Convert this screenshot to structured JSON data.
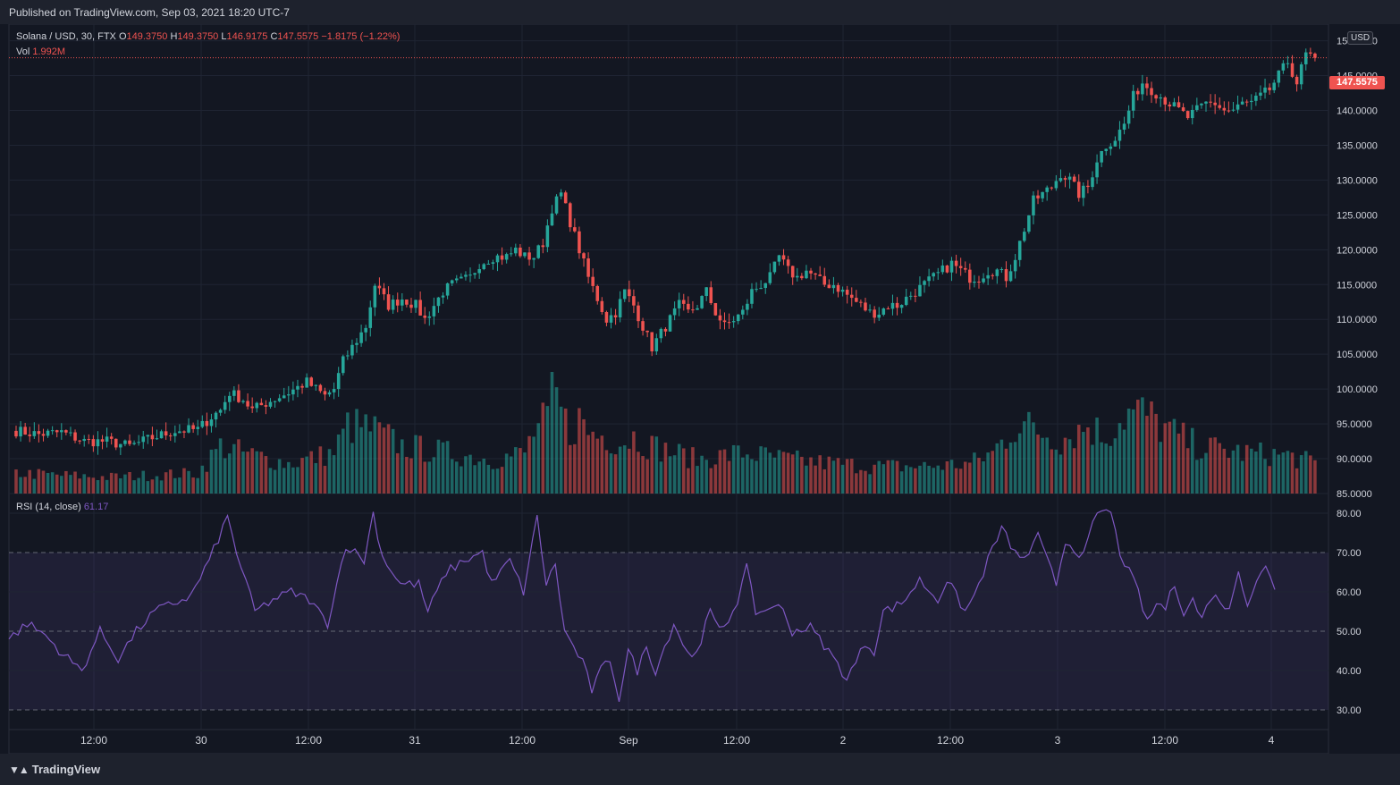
{
  "header": {
    "published": "Published on TradingView.com, Sep 03, 2021 18:20 UTC-7"
  },
  "footer": {
    "brand": "TradingView",
    "logo_icon": "tradingview-logo-icon"
  },
  "legend": {
    "symbol": "Solana / USD, 30, FTX",
    "o_label": "O",
    "o_value": "149.3750",
    "h_label": "H",
    "h_value": "149.3750",
    "l_label": "L",
    "l_value": "146.9175",
    "c_label": "C",
    "c_value": "147.5575",
    "change": "−1.8175 (−1.22%)",
    "vol_label": "Vol",
    "vol_value": "1.992M",
    "rsi_label": "RSI (14, close)",
    "rsi_value": "61.17"
  },
  "currency": "USD",
  "last_price": "147.5575",
  "colors": {
    "up": "#26a69a",
    "down": "#ef5350",
    "rsi": "#7e57c2",
    "background": "#131722",
    "grid": "#1f2433"
  },
  "chart_data": [
    {
      "type": "candlestick",
      "title": "Solana / USD, 30, FTX",
      "ylim": [
        85,
        152
      ],
      "y_ticks": [
        "150.0000",
        "145.0000",
        "140.0000",
        "135.0000",
        "130.0000",
        "125.0000",
        "120.0000",
        "115.0000",
        "110.0000",
        "105.0000",
        "100.0000",
        "95.0000",
        "90.0000",
        "85.0000"
      ],
      "x_ticks": [
        "12:00",
        "30",
        "12:00",
        "31",
        "12:00",
        "Sep",
        "12:00",
        "2",
        "12:00",
        "3",
        "12:00",
        "4"
      ],
      "close_anchors": [
        [
          0,
          94
        ],
        [
          5,
          93.5
        ],
        [
          10,
          93.8
        ],
        [
          15,
          92.5
        ],
        [
          20,
          92.5
        ],
        [
          25,
          91.8
        ],
        [
          30,
          93
        ],
        [
          35,
          94
        ],
        [
          40,
          94.2
        ],
        [
          43,
          96
        ],
        [
          45,
          97
        ],
        [
          47,
          99.5
        ],
        [
          50,
          98.5
        ],
        [
          52,
          97
        ],
        [
          55,
          98
        ],
        [
          60,
          99.5
        ],
        [
          64,
          101
        ],
        [
          66,
          100
        ],
        [
          68,
          99
        ],
        [
          70,
          100
        ],
        [
          72,
          104
        ],
        [
          75,
          107
        ],
        [
          77,
          109
        ],
        [
          79,
          115
        ],
        [
          82,
          112
        ],
        [
          85,
          113
        ],
        [
          88,
          112
        ],
        [
          90,
          110
        ],
        [
          92,
          112
        ],
        [
          94,
          114
        ],
        [
          96,
          115
        ],
        [
          100,
          116
        ],
        [
          102,
          118
        ],
        [
          105,
          119
        ],
        [
          108,
          119
        ],
        [
          110,
          120
        ],
        [
          112,
          119
        ],
        [
          114,
          119
        ],
        [
          116,
          121
        ],
        [
          118,
          126
        ],
        [
          120,
          128
        ],
        [
          122,
          124
        ],
        [
          124,
          120
        ],
        [
          126,
          116
        ],
        [
          128,
          113
        ],
        [
          130,
          110
        ],
        [
          132,
          111
        ],
        [
          134,
          114
        ],
        [
          136,
          112
        ],
        [
          138,
          109
        ],
        [
          140,
          106
        ],
        [
          142,
          108
        ],
        [
          144,
          110
        ],
        [
          146,
          112
        ],
        [
          148,
          111
        ],
        [
          150,
          112
        ],
        [
          152,
          114
        ],
        [
          154,
          111
        ],
        [
          156,
          109
        ],
        [
          158,
          110
        ],
        [
          160,
          111
        ],
        [
          162,
          114
        ],
        [
          164,
          115
        ],
        [
          166,
          116
        ],
        [
          168,
          119
        ],
        [
          170,
          117
        ],
        [
          172,
          116
        ],
        [
          174,
          117
        ],
        [
          176,
          116
        ],
        [
          178,
          115
        ],
        [
          180,
          115
        ],
        [
          182,
          114
        ],
        [
          184,
          113
        ],
        [
          186,
          112
        ],
        [
          188,
          111
        ],
        [
          190,
          111
        ],
        [
          192,
          112
        ],
        [
          194,
          112
        ],
        [
          196,
          113
        ],
        [
          198,
          114
        ],
        [
          200,
          115
        ],
        [
          202,
          116
        ],
        [
          204,
          117
        ],
        [
          206,
          118
        ],
        [
          208,
          117
        ],
        [
          210,
          116
        ],
        [
          212,
          116
        ],
        [
          214,
          117
        ],
        [
          216,
          117
        ],
        [
          218,
          116
        ],
        [
          220,
          119
        ],
        [
          222,
          123
        ],
        [
          224,
          127
        ],
        [
          226,
          128
        ],
        [
          228,
          129
        ],
        [
          230,
          131
        ],
        [
          232,
          130
        ],
        [
          234,
          128
        ],
        [
          236,
          129
        ],
        [
          238,
          133
        ],
        [
          240,
          135
        ],
        [
          242,
          136
        ],
        [
          244,
          138
        ],
        [
          246,
          142
        ],
        [
          248,
          144
        ],
        [
          250,
          143
        ],
        [
          252,
          142
        ],
        [
          254,
          141
        ],
        [
          256,
          140
        ],
        [
          258,
          139
        ],
        [
          260,
          140
        ],
        [
          262,
          141
        ],
        [
          264,
          141
        ],
        [
          266,
          140
        ],
        [
          268,
          140
        ],
        [
          270,
          141
        ],
        [
          272,
          141
        ],
        [
          274,
          142
        ],
        [
          276,
          143
        ],
        [
          278,
          145
        ],
        [
          280,
          147
        ],
        [
          282,
          144
        ],
        [
          284,
          148
        ],
        [
          286,
          147.5575
        ]
      ],
      "vol_anchors": [
        [
          0,
          0.15
        ],
        [
          20,
          0.12
        ],
        [
          40,
          0.15
        ],
        [
          45,
          0.35
        ],
        [
          50,
          0.3
        ],
        [
          60,
          0.22
        ],
        [
          70,
          0.3
        ],
        [
          73,
          0.5
        ],
        [
          78,
          0.48
        ],
        [
          85,
          0.35
        ],
        [
          95,
          0.3
        ],
        [
          105,
          0.25
        ],
        [
          112,
          0.3
        ],
        [
          114,
          0.45
        ],
        [
          117,
          0.55
        ],
        [
          118,
          0.78
        ],
        [
          120,
          0.6
        ],
        [
          122,
          0.45
        ],
        [
          124,
          0.55
        ],
        [
          126,
          0.45
        ],
        [
          130,
          0.42
        ],
        [
          133,
          0.38
        ],
        [
          136,
          0.42
        ],
        [
          140,
          0.35
        ],
        [
          150,
          0.25
        ],
        [
          160,
          0.3
        ],
        [
          170,
          0.25
        ],
        [
          180,
          0.22
        ],
        [
          190,
          0.2
        ],
        [
          200,
          0.2
        ],
        [
          210,
          0.22
        ],
        [
          215,
          0.3
        ],
        [
          220,
          0.5
        ],
        [
          224,
          0.48
        ],
        [
          230,
          0.4
        ],
        [
          236,
          0.5
        ],
        [
          240,
          0.42
        ],
        [
          244,
          0.58
        ],
        [
          248,
          0.6
        ],
        [
          252,
          0.5
        ],
        [
          256,
          0.42
        ],
        [
          260,
          0.35
        ],
        [
          270,
          0.3
        ],
        [
          280,
          0.28
        ],
        [
          286,
          0.22
        ]
      ],
      "last_price": 147.5575,
      "last_volume": "1.992M"
    },
    {
      "type": "line",
      "name": "RSI (14, close)",
      "ylim": [
        25,
        85
      ],
      "y_ticks": [
        "80.00",
        "70.00",
        "60.00",
        "50.00",
        "40.00",
        "30.00"
      ],
      "bands": {
        "upper": 70,
        "middle": 50,
        "lower": 30
      },
      "anchors": [
        [
          0,
          48
        ],
        [
          4,
          52
        ],
        [
          8,
          49
        ],
        [
          12,
          44
        ],
        [
          16,
          40
        ],
        [
          20,
          50
        ],
        [
          24,
          43
        ],
        [
          28,
          50
        ],
        [
          32,
          55
        ],
        [
          36,
          57
        ],
        [
          40,
          59
        ],
        [
          44,
          68
        ],
        [
          48,
          79
        ],
        [
          50,
          70
        ],
        [
          54,
          55
        ],
        [
          58,
          58
        ],
        [
          62,
          60
        ],
        [
          66,
          58
        ],
        [
          70,
          52
        ],
        [
          72,
          62
        ],
        [
          74,
          72
        ],
        [
          78,
          68
        ],
        [
          80,
          80
        ],
        [
          82,
          69
        ],
        [
          86,
          62
        ],
        [
          90,
          62
        ],
        [
          92,
          55
        ],
        [
          96,
          65
        ],
        [
          100,
          68
        ],
        [
          104,
          70
        ],
        [
          106,
          62
        ],
        [
          110,
          68
        ],
        [
          113,
          60
        ],
        [
          116,
          79
        ],
        [
          118,
          62
        ],
        [
          120,
          67
        ],
        [
          122,
          50
        ],
        [
          126,
          42
        ],
        [
          128,
          35
        ],
        [
          130,
          40
        ],
        [
          132,
          43
        ],
        [
          134,
          33
        ],
        [
          136,
          45
        ],
        [
          138,
          40
        ],
        [
          140,
          46
        ],
        [
          142,
          40
        ],
        [
          144,
          46
        ],
        [
          146,
          52
        ],
        [
          148,
          47
        ],
        [
          150,
          43
        ],
        [
          152,
          48
        ],
        [
          154,
          55
        ],
        [
          156,
          50
        ],
        [
          158,
          53
        ],
        [
          160,
          58
        ],
        [
          162,
          66
        ],
        [
          164,
          55
        ],
        [
          166,
          55
        ],
        [
          168,
          57
        ],
        [
          170,
          55
        ],
        [
          172,
          50
        ],
        [
          176,
          51
        ],
        [
          180,
          45
        ],
        [
          184,
          38
        ],
        [
          186,
          42
        ],
        [
          188,
          47
        ],
        [
          190,
          45
        ],
        [
          192,
          55
        ],
        [
          196,
          57
        ],
        [
          200,
          63
        ],
        [
          204,
          58
        ],
        [
          206,
          63
        ],
        [
          210,
          55
        ],
        [
          212,
          59
        ],
        [
          216,
          71
        ],
        [
          218,
          76
        ],
        [
          220,
          72
        ],
        [
          222,
          68
        ],
        [
          224,
          70
        ],
        [
          226,
          74
        ],
        [
          228,
          68
        ],
        [
          230,
          62
        ],
        [
          232,
          73
        ],
        [
          234,
          71
        ],
        [
          236,
          69
        ],
        [
          238,
          77
        ],
        [
          240,
          81
        ],
        [
          242,
          80
        ],
        [
          244,
          70
        ],
        [
          246,
          65
        ],
        [
          248,
          60
        ],
        [
          250,
          52
        ],
        [
          252,
          57
        ],
        [
          254,
          56
        ],
        [
          256,
          62
        ],
        [
          258,
          55
        ],
        [
          260,
          58
        ],
        [
          262,
          53
        ],
        [
          264,
          59
        ],
        [
          266,
          58
        ],
        [
          268,
          55
        ],
        [
          270,
          66
        ],
        [
          272,
          57
        ],
        [
          274,
          63
        ],
        [
          276,
          66
        ],
        [
          278,
          61.17
        ]
      ],
      "last_value": 61.17
    }
  ]
}
